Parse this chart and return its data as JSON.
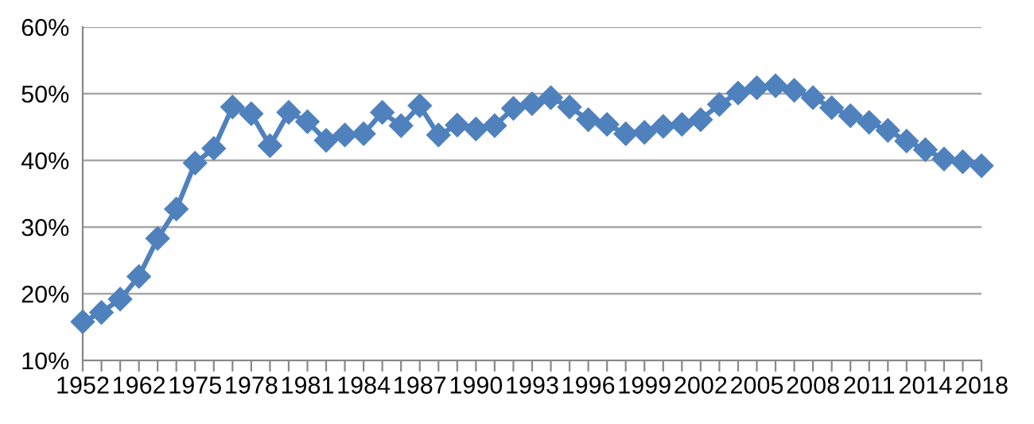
{
  "chart_data": {
    "type": "line",
    "categories": [
      "1952",
      null,
      null,
      "1962",
      null,
      null,
      "1975",
      null,
      null,
      "1978",
      null,
      null,
      "1981",
      null,
      null,
      "1984",
      null,
      null,
      "1987",
      null,
      null,
      "1990",
      null,
      null,
      "1993",
      null,
      null,
      "1996",
      null,
      null,
      "1999",
      null,
      null,
      "2002",
      null,
      null,
      "2005",
      null,
      null,
      "2008",
      null,
      null,
      "2011",
      null,
      null,
      "2014",
      null,
      null,
      "2018"
    ],
    "series": [
      {
        "color": "#4f81bd",
        "values": [
          15.8,
          17.2,
          19.2,
          22.6,
          28.3,
          32.7,
          39.6,
          41.8,
          48.0,
          47.0,
          42.2,
          47.2,
          45.8,
          43.0,
          43.8,
          44.0,
          47.2,
          45.2,
          48.2,
          43.8,
          45.3,
          44.7,
          45.2,
          47.8,
          48.5,
          49.4,
          48.0,
          46.1,
          45.4,
          44.0,
          44.2,
          45.1,
          45.4,
          46.1,
          48.4,
          50.1,
          50.9,
          51.2,
          50.5,
          49.4,
          47.9,
          46.7,
          45.7,
          44.5,
          42.9,
          41.6,
          40.2,
          39.8,
          39.2
        ]
      }
    ],
    "ylim": [
      10,
      60
    ],
    "yticks": [
      {
        "value": 10,
        "label": "10%"
      },
      {
        "value": 20,
        "label": "20%"
      },
      {
        "value": 30,
        "label": "30%"
      },
      {
        "value": 40,
        "label": "40%"
      },
      {
        "value": 50,
        "label": "50%"
      },
      {
        "value": 60,
        "label": "60%"
      }
    ],
    "grid": "y",
    "marker": "diamond",
    "line_style": "solid"
  }
}
